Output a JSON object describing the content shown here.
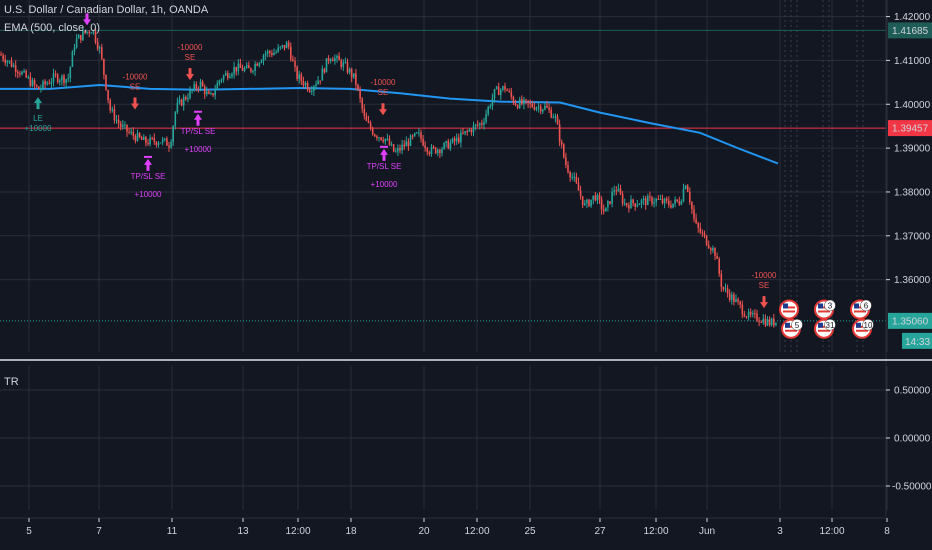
{
  "header": {
    "symbol_title": "U.S. Dollar / Canadian Dollar, 1h, OANDA",
    "indicator_label": "EMA (500, close, 0)"
  },
  "lower_pane": {
    "title": "TR"
  },
  "colors": {
    "background": "#131722",
    "up": "#26a69a",
    "down": "#ef5350",
    "ema": "#2196f3",
    "grid": "#2a2e39",
    "long_signal": "#26a69a",
    "short_signal": "#ef5350",
    "exit_signal": "#e040fb",
    "last_price": "#26a69a",
    "marked_price": "#f23645"
  },
  "chart_data": [
    {
      "type": "candlestick",
      "title": "U.S. Dollar / Canadian Dollar, 1h, OANDA",
      "x_tick_labels": [
        "5",
        "7",
        "11",
        "13",
        "12:00",
        "18",
        "20",
        "12:00",
        "25",
        "27",
        "12:00",
        "Jun",
        "3",
        "12:00",
        "8"
      ],
      "y_tick_labels": [
        "1.42000",
        "1.41000",
        "1.40000",
        "1.39000",
        "1.38000",
        "1.37000",
        "1.36000"
      ],
      "ylim": [
        1.3435,
        1.4215
      ],
      "grid": true,
      "price_badges": [
        {
          "label": "1.41685",
          "value": 1.41685,
          "color": "#1e5c58"
        },
        {
          "label": "1.39457",
          "value": 1.39457,
          "color": "#f23645"
        },
        {
          "label": "1.35060",
          "value": 1.3506,
          "color": "#26a69a"
        }
      ],
      "countdown": "14:33",
      "price_path": [
        [
          0,
          1.4114
        ],
        [
          18,
          1.4079
        ],
        [
          38,
          1.4034
        ],
        [
          55,
          1.4062
        ],
        [
          68,
          1.4058
        ],
        [
          75,
          1.4143
        ],
        [
          84,
          1.4162
        ],
        [
          92,
          1.4172
        ],
        [
          100,
          1.4123
        ],
        [
          110,
          1.3988
        ],
        [
          120,
          1.3952
        ],
        [
          130,
          1.3933
        ],
        [
          145,
          1.3914
        ],
        [
          160,
          1.3917
        ],
        [
          170,
          1.3909
        ],
        [
          176,
          1.3992
        ],
        [
          188,
          1.4022
        ],
        [
          200,
          1.4048
        ],
        [
          210,
          1.4012
        ],
        [
          220,
          1.4058
        ],
        [
          235,
          1.4083
        ],
        [
          250,
          1.4078
        ],
        [
          265,
          1.4117
        ],
        [
          275,
          1.4118
        ],
        [
          288,
          1.4138
        ],
        [
          296,
          1.4066
        ],
        [
          310,
          1.4037
        ],
        [
          320,
          1.4061
        ],
        [
          330,
          1.4112
        ],
        [
          345,
          1.4087
        ],
        [
          355,
          1.4057
        ],
        [
          365,
          1.3962
        ],
        [
          375,
          1.3932
        ],
        [
          385,
          1.3922
        ],
        [
          395,
          1.3888
        ],
        [
          405,
          1.3908
        ],
        [
          418,
          1.3931
        ],
        [
          430,
          1.3893
        ],
        [
          442,
          1.3901
        ],
        [
          456,
          1.3917
        ],
        [
          470,
          1.3942
        ],
        [
          482,
          1.3958
        ],
        [
          495,
          1.4028
        ],
        [
          505,
          1.4038
        ],
        [
          515,
          1.4003
        ],
        [
          530,
          1.3998
        ],
        [
          545,
          1.3993
        ],
        [
          555,
          1.3972
        ],
        [
          565,
          1.3867
        ],
        [
          575,
          1.3822
        ],
        [
          585,
          1.3767
        ],
        [
          595,
          1.3792
        ],
        [
          605,
          1.3752
        ],
        [
          615,
          1.3812
        ],
        [
          625,
          1.3772
        ],
        [
          640,
          1.3777
        ],
        [
          655,
          1.3782
        ],
        [
          670,
          1.3772
        ],
        [
          680,
          1.3779
        ],
        [
          686,
          1.3826
        ],
        [
          695,
          1.3726
        ],
        [
          705,
          1.3693
        ],
        [
          715,
          1.3662
        ],
        [
          722,
          1.3582
        ],
        [
          735,
          1.3552
        ],
        [
          748,
          1.3516
        ],
        [
          760,
          1.3512
        ],
        [
          770,
          1.3501
        ],
        [
          778,
          1.3506
        ]
      ],
      "ema_500": [
        [
          0,
          1.4035
        ],
        [
          50,
          1.4035
        ],
        [
          100,
          1.4044
        ],
        [
          150,
          1.4035
        ],
        [
          200,
          1.4033
        ],
        [
          300,
          1.4037
        ],
        [
          350,
          1.4035
        ],
        [
          400,
          1.4025
        ],
        [
          450,
          1.4013
        ],
        [
          500,
          1.4006
        ],
        [
          560,
          1.4004
        ],
        [
          600,
          1.3981
        ],
        [
          650,
          1.3957
        ],
        [
          700,
          1.3935
        ],
        [
          740,
          1.3898
        ],
        [
          778,
          1.3865
        ]
      ],
      "signals": [
        {
          "kind": "long_entry",
          "label": "LE",
          "qty": "+10000",
          "x": 38,
          "value": 1.403
        },
        {
          "kind": "exit",
          "label": "TP/SL SE",
          "qty": "+10000",
          "x": 148,
          "value": 1.3905
        },
        {
          "kind": "exit",
          "label": "TP/SL SE",
          "qty": "+10000",
          "x": 198,
          "value": 1.4008
        },
        {
          "kind": "exit",
          "label": "TP/SL SE",
          "qty": "+10000",
          "x": 384,
          "value": 1.3928
        },
        {
          "kind": "exit_top",
          "label": "",
          "qty": "+10000",
          "x": 87,
          "value": 1.418
        },
        {
          "kind": "short_entry",
          "label": "SE",
          "qty": "-10000",
          "x": 135,
          "value": 1.3988
        },
        {
          "kind": "short_entry",
          "label": "SE",
          "qty": "-10000",
          "x": 190,
          "value": 1.4055
        },
        {
          "kind": "short_entry",
          "label": "SE",
          "qty": "-10000",
          "x": 383,
          "value": 1.3975
        },
        {
          "kind": "short_entry",
          "label": "SE",
          "qty": "-10000",
          "x": 764,
          "value": 1.3535
        }
      ],
      "event_badges": [
        {
          "x": 789,
          "value": 1.3532,
          "count": ""
        },
        {
          "x": 791,
          "value": 1.3488,
          "count": "5"
        },
        {
          "x": 824,
          "value": 1.3532,
          "count": "3"
        },
        {
          "x": 824,
          "value": 1.3488,
          "count": "31"
        },
        {
          "x": 860,
          "value": 1.3532,
          "count": "6"
        },
        {
          "x": 862,
          "value": 1.3488,
          "count": "10"
        }
      ]
    },
    {
      "type": "line",
      "title": "TR",
      "y_tick_labels": [
        "0.50000",
        "0.00000",
        "-0.50000"
      ],
      "ylim": [
        -0.75,
        0.75
      ],
      "series": []
    }
  ]
}
